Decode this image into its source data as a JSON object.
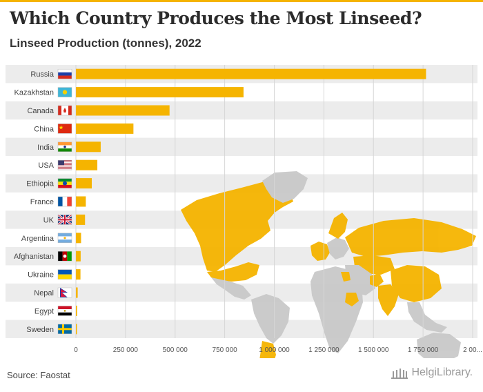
{
  "header": {
    "title": "Which Country Produces the Most Linseed?",
    "subtitle": "Linseed Production (tonnes), 2022"
  },
  "footer": {
    "source": "Source: Faostat",
    "logo_text": "HelgiLibrary."
  },
  "colors": {
    "bar": "#f5b400",
    "band": "#ececec",
    "map_highlight": "#f5b400",
    "map_other": "#c9c9c9",
    "accent": "#f5b400"
  },
  "chart_data": {
    "type": "bar",
    "orientation": "horizontal",
    "categories": [
      "Russia",
      "Kazakhstan",
      "Canada",
      "China",
      "India",
      "USA",
      "Ethiopia",
      "France",
      "UK",
      "Argentina",
      "Afghanistan",
      "Ukraine",
      "Nepal",
      "Egypt",
      "Sweden"
    ],
    "flags": [
      "russia-flag",
      "kazakhstan-flag",
      "canada-flag",
      "china-flag",
      "india-flag",
      "usa-flag",
      "ethiopia-flag",
      "france-flag",
      "uk-flag",
      "argentina-flag",
      "afghanistan-flag",
      "ukraine-flag",
      "nepal-flag",
      "egypt-flag",
      "sweden-flag"
    ],
    "values": [
      1765000,
      845000,
      472000,
      290000,
      125000,
      108000,
      80000,
      50000,
      46000,
      26000,
      24000,
      23000,
      9000,
      6000,
      5000
    ],
    "xlim": [
      0,
      2000000
    ],
    "xticks": [
      "0",
      "250 000",
      "500 000",
      "750 000",
      "1 000 000",
      "1 250 000",
      "1 500 000",
      "1 750 000",
      "2 00..."
    ],
    "xlabel": "",
    "ylabel": "",
    "grid": true,
    "background_map": "world map with the listed producing countries highlighted"
  }
}
